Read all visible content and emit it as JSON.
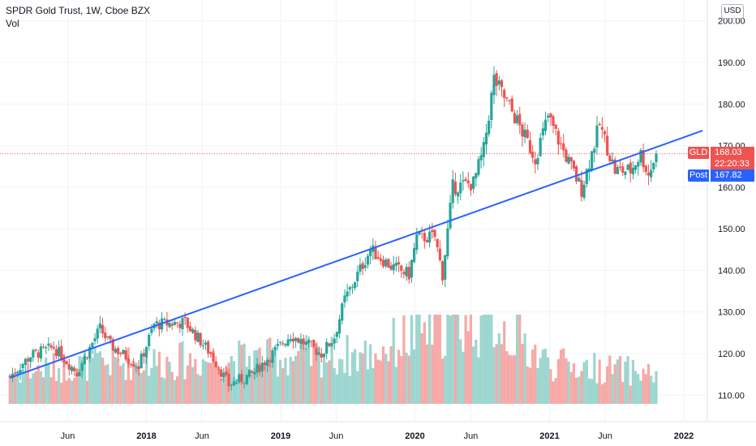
{
  "header": {
    "title": "SPDR Gold Trust, 1W, Cboe BZX",
    "indicator": "Vol",
    "currency": "USD"
  },
  "badges": {
    "symbol": "GLD",
    "last_price": "168.03",
    "countdown": "22:20:33",
    "post_label": "Post",
    "post_price": "167.82"
  },
  "colors": {
    "up": "#26a69a",
    "down": "#ef5350",
    "vol_up": "#9cd6cf",
    "vol_down": "#f6a9a7",
    "trendline": "#2962ff",
    "grid": "#f0f3fa",
    "text": "#131722"
  },
  "chart_data": {
    "type": "candlestick",
    "ylim": [
      102,
      202
    ],
    "y_ticks": [
      "200.00",
      "190.00",
      "180.00",
      "170.00",
      "160.00",
      "150.00",
      "140.00",
      "130.00",
      "120.00",
      "110.00"
    ],
    "x_ticks": [
      "Jun",
      "2018",
      "Jun",
      "2019",
      "Jun",
      "2020",
      "Jun",
      "2021",
      "Jun",
      "2022"
    ],
    "last_price_line": 168.03,
    "trendline": {
      "start": {
        "date": "2016-12-26",
        "price": 114.2
      },
      "end": {
        "date": "2022-02-21",
        "price": 173.6
      }
    },
    "ohlc_key_points": [
      [
        "2016-12-26",
        114.5
      ],
      [
        "2017-02-20",
        119.5
      ],
      [
        "2017-04-24",
        121.5
      ],
      [
        "2017-06-26",
        115.5
      ],
      [
        "2017-08-28",
        126.0
      ],
      [
        "2017-09-25",
        122.0
      ],
      [
        "2017-12-11",
        117.0
      ],
      [
        "2018-01-22",
        127.0
      ],
      [
        "2018-04-16",
        127.5
      ],
      [
        "2018-06-25",
        120.0
      ],
      [
        "2018-08-13",
        112.5
      ],
      [
        "2018-10-15",
        115.0
      ],
      [
        "2019-01-28",
        124.5
      ],
      [
        "2019-04-22",
        120.0
      ],
      [
        "2019-05-27",
        124.0
      ],
      [
        "2019-06-24",
        133.0
      ],
      [
        "2019-09-02",
        145.0
      ],
      [
        "2019-10-28",
        141.0
      ],
      [
        "2019-12-16",
        139.0
      ],
      [
        "2020-01-06",
        148.0
      ],
      [
        "2020-02-24",
        148.0
      ],
      [
        "2020-03-16",
        139.0
      ],
      [
        "2020-04-13",
        160.0
      ],
      [
        "2020-06-08",
        161.0
      ],
      [
        "2020-07-06",
        169.0
      ],
      [
        "2020-08-03",
        186.0
      ],
      [
        "2020-09-28",
        177.0
      ],
      [
        "2020-11-23",
        167.0
      ],
      [
        "2020-12-28",
        177.0
      ],
      [
        "2021-02-01",
        170.0
      ],
      [
        "2021-03-29",
        159.5
      ],
      [
        "2021-05-17",
        175.0
      ],
      [
        "2021-06-28",
        164.0
      ],
      [
        "2021-08-09",
        164.0
      ],
      [
        "2021-09-06",
        168.0
      ],
      [
        "2021-09-27",
        163.0
      ],
      [
        "2021-10-18",
        168.03
      ]
    ],
    "volume_key_points": [
      [
        "2017-01-01",
        0.35
      ],
      [
        "2017-08-01",
        0.45
      ],
      [
        "2018-08-01",
        0.5
      ],
      [
        "2019-09-01",
        0.55
      ],
      [
        "2020-03-01",
        0.9
      ],
      [
        "2020-08-01",
        0.95
      ],
      [
        "2021-01-01",
        0.45
      ],
      [
        "2021-10-01",
        0.35
      ]
    ]
  }
}
